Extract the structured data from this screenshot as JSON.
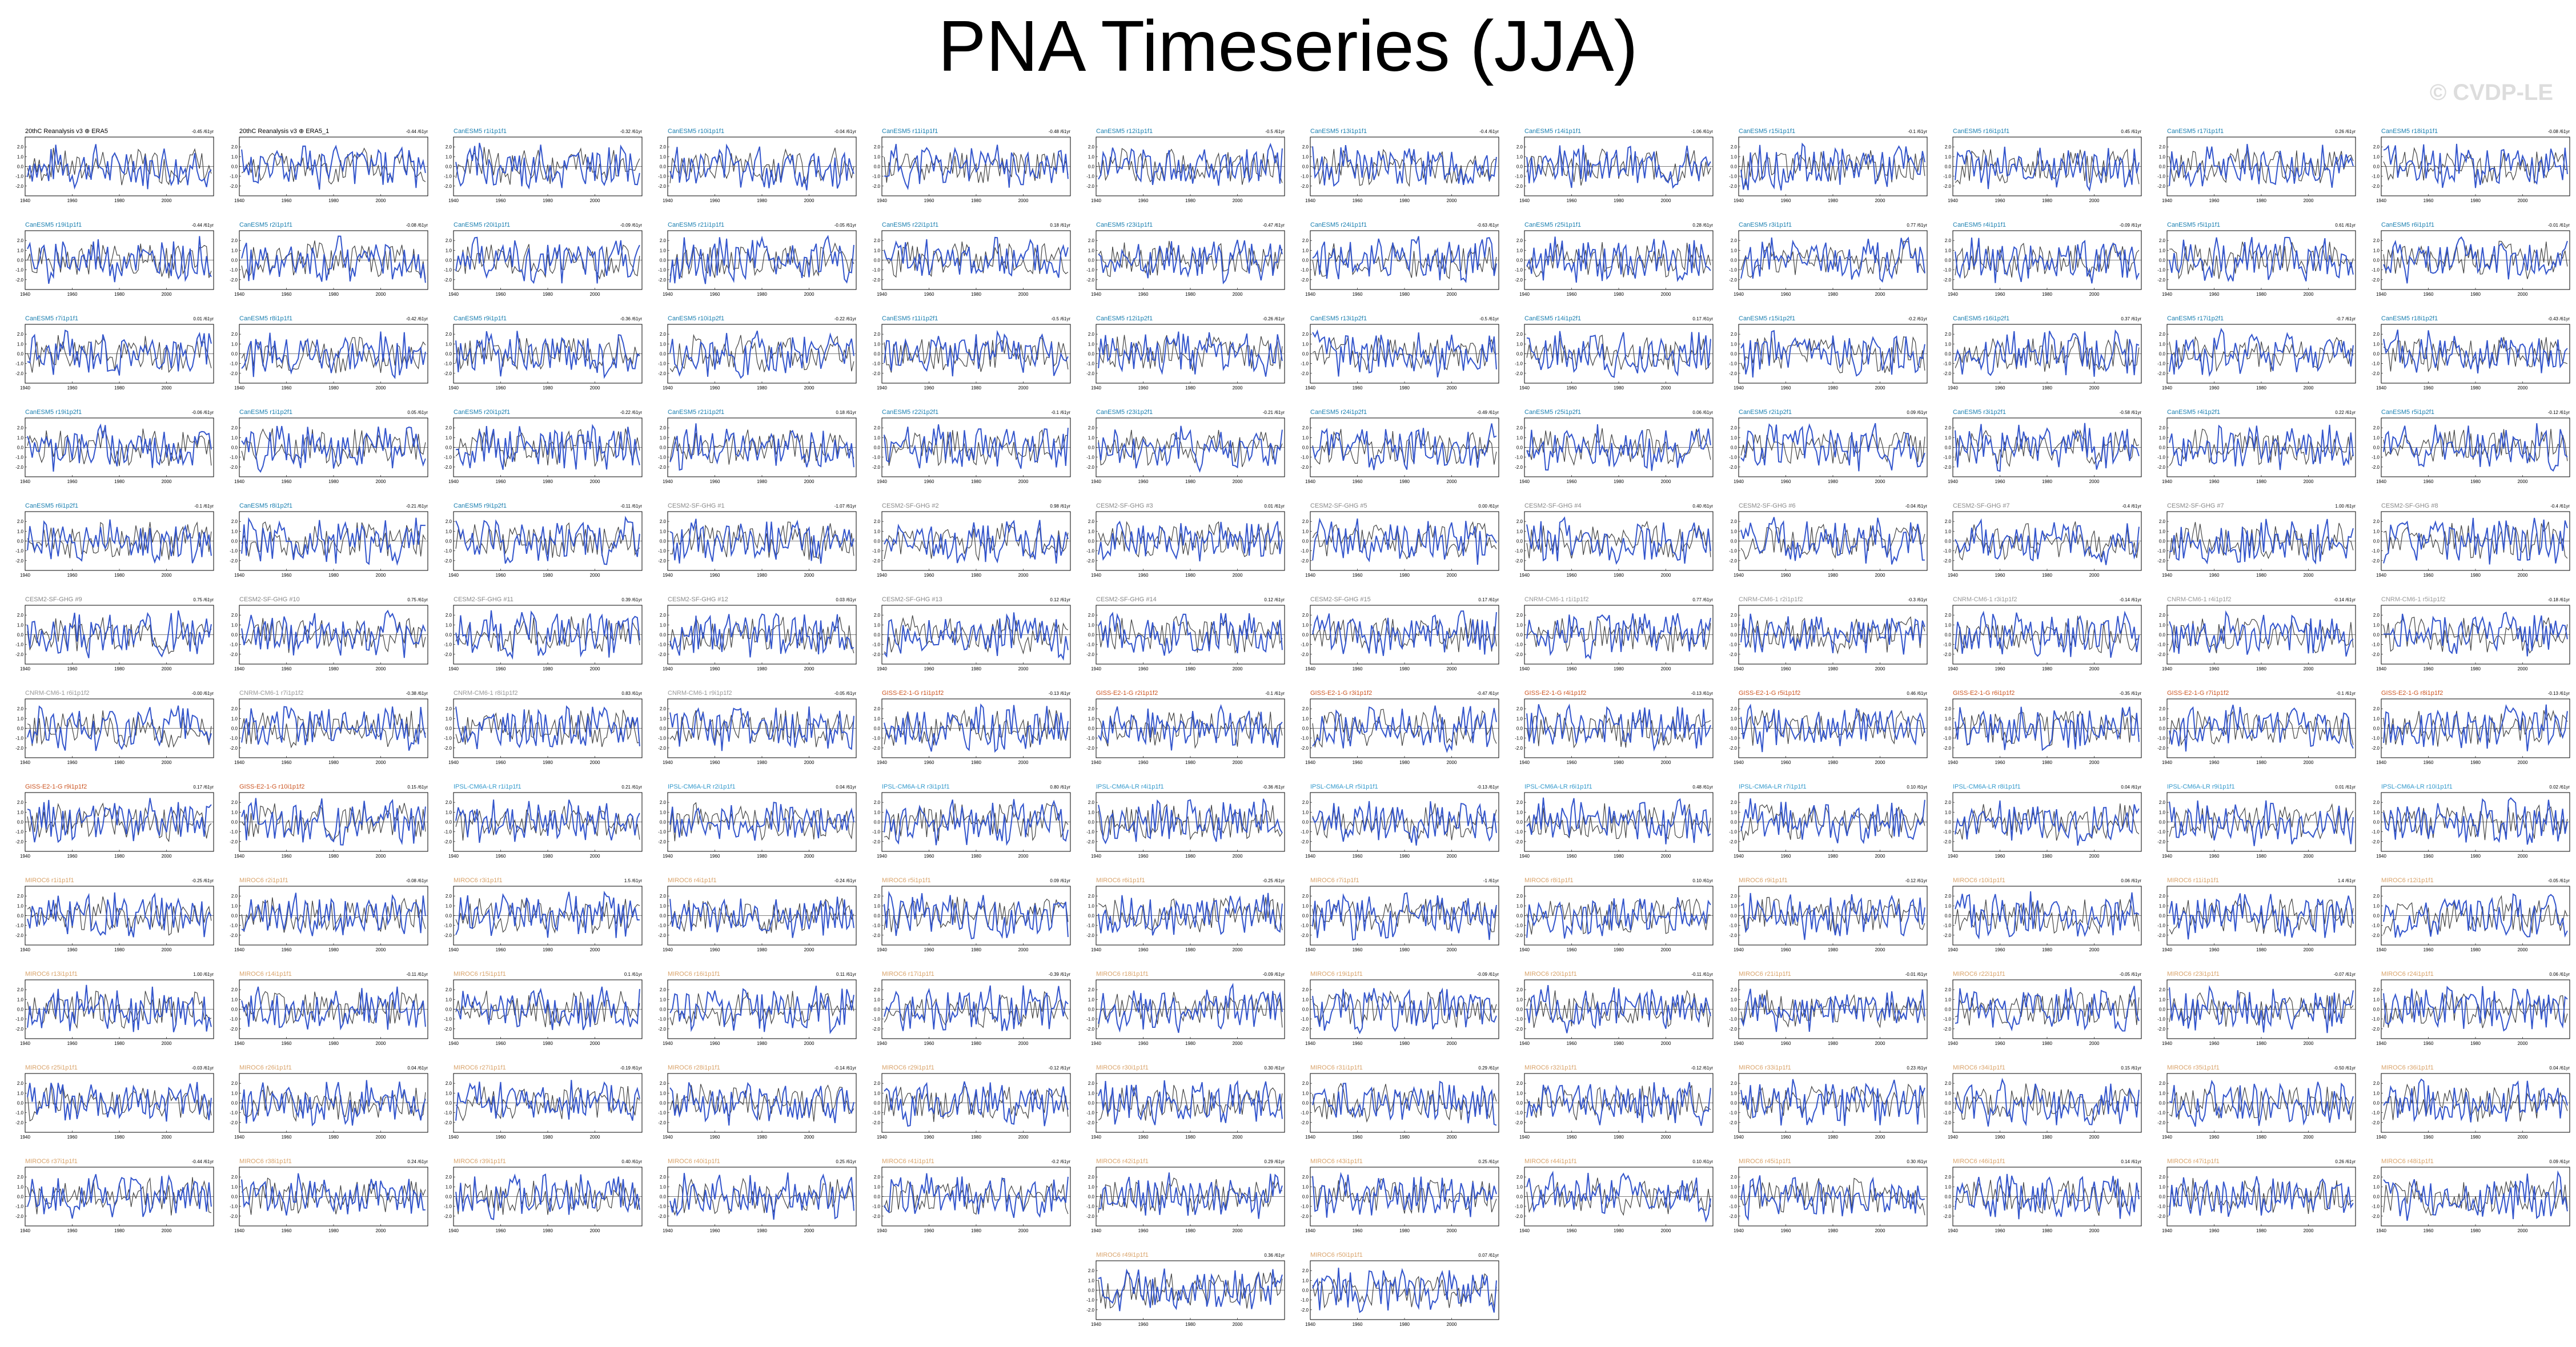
{
  "page": {
    "title": "PNA Timeseries (JJA)",
    "watermark": "© CVDP-LE"
  },
  "colors": {
    "series_line": "#3355cc",
    "observed_line": "#444444",
    "title_obs": "#000000",
    "title_canesm5": "#1a7fb0",
    "title_cesm2": "#888888",
    "title_cnrm": "#999999",
    "title_giss": "#cc5522",
    "title_ipsl": "#3399cc",
    "title_miroc": "#d9a36a"
  },
  "chart_data": {
    "type": "line",
    "x_ticks": [
      1940,
      1960,
      1980,
      2000
    ],
    "y_ticks": [
      2.0,
      1.0,
      0.0,
      -1.0,
      -2.0
    ],
    "xlim": [
      1940,
      2020
    ],
    "ylim": [
      -3,
      3
    ],
    "panels": [
      {
        "title": "20thC Reanalysis v3 ⊕ ERA5",
        "rate": "-0.45 /61yr",
        "group": "obs"
      },
      {
        "title": "20thC Reanalysis v3 ⊕ ERA5_1",
        "rate": "-0.44 /61yr",
        "group": "obs"
      },
      {
        "title": "CanESM5 r1i1p1f1",
        "rate": "-0.32 /61yr",
        "group": "canesm5"
      },
      {
        "title": "CanESM5 r10i1p1f1",
        "rate": "-0.04 /61yr",
        "group": "canesm5"
      },
      {
        "title": "CanESM5 r11i1p1f1",
        "rate": "-0.48 /61yr",
        "group": "canesm5"
      },
      {
        "title": "CanESM5 r12i1p1f1",
        "rate": "-0.5 /61yr",
        "group": "canesm5"
      },
      {
        "title": "CanESM5 r13i1p1f1",
        "rate": "-0.4 /61yr",
        "group": "canesm5"
      },
      {
        "title": "CanESM5 r14i1p1f1",
        "rate": "-1.06 /61yr",
        "group": "canesm5"
      },
      {
        "title": "CanESM5 r15i1p1f1",
        "rate": "-0.1 /61yr",
        "group": "canesm5"
      },
      {
        "title": "CanESM5 r16i1p1f1",
        "rate": "0.45 /61yr",
        "group": "canesm5"
      },
      {
        "title": "CanESM5 r17i1p1f1",
        "rate": "0.26 /61yr",
        "group": "canesm5"
      },
      {
        "title": "CanESM5 r18i1p1f1",
        "rate": "-0.08 /61yr",
        "group": "canesm5"
      },
      {
        "title": "CanESM5 r19i1p1f1",
        "rate": "-0.44 /61yr",
        "group": "canesm5"
      },
      {
        "title": "CanESM5 r2i1p1f1",
        "rate": "-0.08 /61yr",
        "group": "canesm5"
      },
      {
        "title": "CanESM5 r20i1p1f1",
        "rate": "-0.09 /61yr",
        "group": "canesm5"
      },
      {
        "title": "CanESM5 r21i1p1f1",
        "rate": "-0.05 /61yr",
        "group": "canesm5"
      },
      {
        "title": "CanESM5 r22i1p1f1",
        "rate": "0.18 /61yr",
        "group": "canesm5"
      },
      {
        "title": "CanESM5 r23i1p1f1",
        "rate": "-0.47 /61yr",
        "group": "canesm5"
      },
      {
        "title": "CanESM5 r24i1p1f1",
        "rate": "-0.63 /61yr",
        "group": "canesm5"
      },
      {
        "title": "CanESM5 r25i1p1f1",
        "rate": "0.28 /61yr",
        "group": "canesm5"
      },
      {
        "title": "CanESM5 r3i1p1f1",
        "rate": "0.77 /61yr",
        "group": "canesm5"
      },
      {
        "title": "CanESM5 r4i1p1f1",
        "rate": "-0.09 /61yr",
        "group": "canesm5"
      },
      {
        "title": "CanESM5 r5i1p1f1",
        "rate": "0.61 /61yr",
        "group": "canesm5"
      },
      {
        "title": "CanESM5 r6i1p1f1",
        "rate": "-0.01 /61yr",
        "group": "canesm5"
      },
      {
        "title": "CanESM5 r7i1p1f1",
        "rate": "0.01 /61yr",
        "group": "canesm5"
      },
      {
        "title": "CanESM5 r8i1p1f1",
        "rate": "-0.42 /61yr",
        "group": "canesm5"
      },
      {
        "title": "CanESM5 r9i1p1f1",
        "rate": "-0.36 /61yr",
        "group": "canesm5"
      },
      {
        "title": "CanESM5 r10i1p2f1",
        "rate": "-0.22 /61yr",
        "group": "canesm5"
      },
      {
        "title": "CanESM5 r11i1p2f1",
        "rate": "-0.5 /61yr",
        "group": "canesm5"
      },
      {
        "title": "CanESM5 r12i1p2f1",
        "rate": "-0.26 /61yr",
        "group": "canesm5"
      },
      {
        "title": "CanESM5 r13i1p2f1",
        "rate": "-0.5 /61yr",
        "group": "canesm5"
      },
      {
        "title": "CanESM5 r14i1p2f1",
        "rate": "0.17 /61yr",
        "group": "canesm5"
      },
      {
        "title": "CanESM5 r15i1p2f1",
        "rate": "-0.2 /61yr",
        "group": "canesm5"
      },
      {
        "title": "CanESM5 r16i1p2f1",
        "rate": "0.37 /61yr",
        "group": "canesm5"
      },
      {
        "title": "CanESM5 r17i1p2f1",
        "rate": "-0.7 /61yr",
        "group": "canesm5"
      },
      {
        "title": "CanESM5 r18i1p2f1",
        "rate": "-0.43 /61yr",
        "group": "canesm5"
      },
      {
        "title": "CanESM5 r19i1p2f1",
        "rate": "-0.06 /61yr",
        "group": "canesm5"
      },
      {
        "title": "CanESM5 r1i1p2f1",
        "rate": "0.05 /61yr",
        "group": "canesm5"
      },
      {
        "title": "CanESM5 r20i1p2f1",
        "rate": "-0.22 /61yr",
        "group": "canesm5"
      },
      {
        "title": "CanESM5 r21i1p2f1",
        "rate": "0.18 /61yr",
        "group": "canesm5"
      },
      {
        "title": "CanESM5 r22i1p2f1",
        "rate": "-0.1 /61yr",
        "group": "canesm5"
      },
      {
        "title": "CanESM5 r23i1p2f1",
        "rate": "-0.21 /61yr",
        "group": "canesm5"
      },
      {
        "title": "CanESM5 r24i1p2f1",
        "rate": "-0.49 /61yr",
        "group": "canesm5"
      },
      {
        "title": "CanESM5 r25i1p2f1",
        "rate": "0.06 /61yr",
        "group": "canesm5"
      },
      {
        "title": "CanESM5 r2i1p2f1",
        "rate": "0.09 /61yr",
        "group": "canesm5"
      },
      {
        "title": "CanESM5 r3i1p2f1",
        "rate": "-0.58 /61yr",
        "group": "canesm5"
      },
      {
        "title": "CanESM5 r4i1p2f1",
        "rate": "0.22 /61yr",
        "group": "canesm5"
      },
      {
        "title": "CanESM5 r5i1p2f1",
        "rate": "-0.12 /61yr",
        "group": "canesm5"
      },
      {
        "title": "CanESM5 r6i1p2f1",
        "rate": "-0.1 /61yr",
        "group": "canesm5"
      },
      {
        "title": "CanESM5 r8i1p2f1",
        "rate": "-0.21 /61yr",
        "group": "canesm5"
      },
      {
        "title": "CanESM5 r9i1p2f1",
        "rate": "-0.11 /61yr",
        "group": "canesm5"
      },
      {
        "title": "CESM2-SF-GHG #1",
        "rate": "-1.07 /61yr",
        "group": "cesm2"
      },
      {
        "title": "CESM2-SF-GHG #2",
        "rate": "0.98 /61yr",
        "group": "cesm2"
      },
      {
        "title": "CESM2-SF-GHG #3",
        "rate": "0.01 /61yr",
        "group": "cesm2"
      },
      {
        "title": "CESM2-SF-GHG #5",
        "rate": "0.00 /61yr",
        "group": "cesm2"
      },
      {
        "title": "CESM2-SF-GHG #4",
        "rate": "0.40 /61yr",
        "group": "cesm2"
      },
      {
        "title": "CESM2-SF-GHG #6",
        "rate": "-0.04 /61yr",
        "group": "cesm2"
      },
      {
        "title": "CESM2-SF-GHG #7",
        "rate": "-0.4 /61yr",
        "group": "cesm2"
      },
      {
        "title": "CESM2-SF-GHG #7",
        "rate": "1.00 /61yr",
        "group": "cesm2"
      },
      {
        "title": "CESM2-SF-GHG #8",
        "rate": "-0.4 /61yr",
        "group": "cesm2"
      },
      {
        "title": "CESM2-SF-GHG #9",
        "rate": "0.75 /61yr",
        "group": "cesm2"
      },
      {
        "title": "CESM2-SF-GHG #10",
        "rate": "0.75 /61yr",
        "group": "cesm2"
      },
      {
        "title": "CESM2-SF-GHG #11",
        "rate": "0.39 /61yr",
        "group": "cesm2"
      },
      {
        "title": "CESM2-SF-GHG #12",
        "rate": "0.03 /61yr",
        "group": "cesm2"
      },
      {
        "title": "CESM2-SF-GHG #13",
        "rate": "0.12 /61yr",
        "group": "cesm2"
      },
      {
        "title": "CESM2-SF-GHG #14",
        "rate": "0.12 /61yr",
        "group": "cesm2"
      },
      {
        "title": "CESM2-SF-GHG #15",
        "rate": "0.17 /61yr",
        "group": "cesm2"
      },
      {
        "title": "CNRM-CM6-1 r1i1p1f2",
        "rate": "0.77 /61yr",
        "group": "cnrm"
      },
      {
        "title": "CNRM-CM6-1 r2i1p1f2",
        "rate": "-0.3 /61yr",
        "group": "cnrm"
      },
      {
        "title": "CNRM-CM6-1 r3i1p1f2",
        "rate": "-0.14 /61yr",
        "group": "cnrm"
      },
      {
        "title": "CNRM-CM6-1 r4i1p1f2",
        "rate": "-0.14 /61yr",
        "group": "cnrm"
      },
      {
        "title": "CNRM-CM6-1 r5i1p1f2",
        "rate": "-0.18 /61yr",
        "group": "cnrm"
      },
      {
        "title": "CNRM-CM6-1 r6i1p1f2",
        "rate": "-0.00 /61yr",
        "group": "cnrm"
      },
      {
        "title": "CNRM-CM6-1 r7i1p1f2",
        "rate": "-0.38 /61yr",
        "group": "cnrm"
      },
      {
        "title": "CNRM-CM6-1 r8i1p1f2",
        "rate": "0.83 /61yr",
        "group": "cnrm"
      },
      {
        "title": "CNRM-CM6-1 r9i1p1f2",
        "rate": "-0.05 /61yr",
        "group": "cnrm"
      },
      {
        "title": "GISS-E2-1-G r1i1p1f2",
        "rate": "-0.13 /61yr",
        "group": "giss"
      },
      {
        "title": "GISS-E2-1-G r2i1p1f2",
        "rate": "-0.1 /61yr",
        "group": "giss"
      },
      {
        "title": "GISS-E2-1-G r3i1p1f2",
        "rate": "-0.47 /61yr",
        "group": "giss"
      },
      {
        "title": "GISS-E2-1-G r4i1p1f2",
        "rate": "-0.13 /61yr",
        "group": "giss"
      },
      {
        "title": "GISS-E2-1-G r5i1p1f2",
        "rate": "0.46 /61yr",
        "group": "giss"
      },
      {
        "title": "GISS-E2-1-G r6i1p1f2",
        "rate": "-0.35 /61yr",
        "group": "giss"
      },
      {
        "title": "GISS-E2-1-G r7i1p1f2",
        "rate": "-0.1 /61yr",
        "group": "giss"
      },
      {
        "title": "GISS-E2-1-G r8i1p1f2",
        "rate": "-0.13 /61yr",
        "group": "giss"
      },
      {
        "title": "GISS-E2-1-G r9i1p1f2",
        "rate": "0.17 /61yr",
        "group": "giss"
      },
      {
        "title": "GISS-E2-1-G r10i1p1f2",
        "rate": "0.15 /61yr",
        "group": "giss"
      },
      {
        "title": "IPSL-CM6A-LR r1i1p1f1",
        "rate": "0.21 /61yr",
        "group": "ipsl"
      },
      {
        "title": "IPSL-CM6A-LR r2i1p1f1",
        "rate": "0.04 /61yr",
        "group": "ipsl"
      },
      {
        "title": "IPSL-CM6A-LR r3i1p1f1",
        "rate": "0.80 /61yr",
        "group": "ipsl"
      },
      {
        "title": "IPSL-CM6A-LR r4i1p1f1",
        "rate": "-0.36 /61yr",
        "group": "ipsl"
      },
      {
        "title": "IPSL-CM6A-LR r5i1p1f1",
        "rate": "-0.13 /61yr",
        "group": "ipsl"
      },
      {
        "title": "IPSL-CM6A-LR r6i1p1f1",
        "rate": "0.48 /61yr",
        "group": "ipsl"
      },
      {
        "title": "IPSL-CM6A-LR r7i1p1f1",
        "rate": "0.10 /61yr",
        "group": "ipsl"
      },
      {
        "title": "IPSL-CM6A-LR r8i1p1f1",
        "rate": "0.04 /61yr",
        "group": "ipsl"
      },
      {
        "title": "IPSL-CM6A-LR r9i1p1f1",
        "rate": "0.01 /61yr",
        "group": "ipsl"
      },
      {
        "title": "IPSL-CM6A-LR r10i1p1f1",
        "rate": "0.02 /61yr",
        "group": "ipsl"
      },
      {
        "title": "MIROC6 r1i1p1f1",
        "rate": "-0.25 /61yr",
        "group": "miroc"
      },
      {
        "title": "MIROC6 r2i1p1f1",
        "rate": "-0.08 /61yr",
        "group": "miroc"
      },
      {
        "title": "MIROC6 r3i1p1f1",
        "rate": "1.5 /61yr",
        "group": "miroc"
      },
      {
        "title": "MIROC6 r4i1p1f1",
        "rate": "-0.24 /61yr",
        "group": "miroc"
      },
      {
        "title": "MIROC6 r5i1p1f1",
        "rate": "0.09 /61yr",
        "group": "miroc"
      },
      {
        "title": "MIROC6 r6i1p1f1",
        "rate": "-0.25 /61yr",
        "group": "miroc"
      },
      {
        "title": "MIROC6 r7i1p1f1",
        "rate": "-1 /61yr",
        "group": "miroc"
      },
      {
        "title": "MIROC6 r8i1p1f1",
        "rate": "0.10 /61yr",
        "group": "miroc"
      },
      {
        "title": "MIROC6 r9i1p1f1",
        "rate": "-0.12 /61yr",
        "group": "miroc"
      },
      {
        "title": "MIROC6 r10i1p1f1",
        "rate": "0.06 /61yr",
        "group": "miroc"
      },
      {
        "title": "MIROC6 r11i1p1f1",
        "rate": "1.4 /61yr",
        "group": "miroc"
      },
      {
        "title": "MIROC6 r12i1p1f1",
        "rate": "-0.05 /61yr",
        "group": "miroc"
      },
      {
        "title": "MIROC6 r13i1p1f1",
        "rate": "1.00 /61yr",
        "group": "miroc"
      },
      {
        "title": "MIROC6 r14i1p1f1",
        "rate": "-0.11 /61yr",
        "group": "miroc"
      },
      {
        "title": "MIROC6 r15i1p1f1",
        "rate": "0.1 /61yr",
        "group": "miroc"
      },
      {
        "title": "MIROC6 r16i1p1f1",
        "rate": "0.11 /61yr",
        "group": "miroc"
      },
      {
        "title": "MIROC6 r17i1p1f1",
        "rate": "-0.39 /61yr",
        "group": "miroc"
      },
      {
        "title": "MIROC6 r18i1p1f1",
        "rate": "-0.09 /61yr",
        "group": "miroc"
      },
      {
        "title": "MIROC6 r19i1p1f1",
        "rate": "-0.09 /61yr",
        "group": "miroc"
      },
      {
        "title": "MIROC6 r20i1p1f1",
        "rate": "-0.11 /61yr",
        "group": "miroc"
      },
      {
        "title": "MIROC6 r21i1p1f1",
        "rate": "-0.01 /61yr",
        "group": "miroc"
      },
      {
        "title": "MIROC6 r22i1p1f1",
        "rate": "-0.05 /61yr",
        "group": "miroc"
      },
      {
        "title": "MIROC6 r23i1p1f1",
        "rate": "-0.07 /61yr",
        "group": "miroc"
      },
      {
        "title": "MIROC6 r24i1p1f1",
        "rate": "0.06 /61yr",
        "group": "miroc"
      },
      {
        "title": "MIROC6 r25i1p1f1",
        "rate": "-0.03 /61yr",
        "group": "miroc"
      },
      {
        "title": "MIROC6 r26i1p1f1",
        "rate": "0.04 /61yr",
        "group": "miroc"
      },
      {
        "title": "MIROC6 r27i1p1f1",
        "rate": "-0.19 /61yr",
        "group": "miroc"
      },
      {
        "title": "MIROC6 r28i1p1f1",
        "rate": "-0.14 /61yr",
        "group": "miroc"
      },
      {
        "title": "MIROC6 r29i1p1f1",
        "rate": "-0.12 /61yr",
        "group": "miroc"
      },
      {
        "title": "MIROC6 r30i1p1f1",
        "rate": "0.30 /61yr",
        "group": "miroc"
      },
      {
        "title": "MIROC6 r31i1p1f1",
        "rate": "0.29 /61yr",
        "group": "miroc"
      },
      {
        "title": "MIROC6 r32i1p1f1",
        "rate": "-0.12 /61yr",
        "group": "miroc"
      },
      {
        "title": "MIROC6 r33i1p1f1",
        "rate": "0.23 /61yr",
        "group": "miroc"
      },
      {
        "title": "MIROC6 r34i1p1f1",
        "rate": "0.15 /61yr",
        "group": "miroc"
      },
      {
        "title": "MIROC6 r35i1p1f1",
        "rate": "-0.50 /61yr",
        "group": "miroc"
      },
      {
        "title": "MIROC6 r36i1p1f1",
        "rate": "0.04 /61yr",
        "group": "miroc"
      },
      {
        "title": "MIROC6 r37i1p1f1",
        "rate": "-0.44 /61yr",
        "group": "miroc"
      },
      {
        "title": "MIROC6 r38i1p1f1",
        "rate": "0.24 /61yr",
        "group": "miroc"
      },
      {
        "title": "MIROC6 r39i1p1f1",
        "rate": "0.40 /61yr",
        "group": "miroc"
      },
      {
        "title": "MIROC6 r40i1p1f1",
        "rate": "0.25 /61yr",
        "group": "miroc"
      },
      {
        "title": "MIROC6 r41i1p1f1",
        "rate": "-0.2 /61yr",
        "group": "miroc"
      },
      {
        "title": "MIROC6 r42i1p1f1",
        "rate": "0.29 /61yr",
        "group": "miroc"
      },
      {
        "title": "MIROC6 r43i1p1f1",
        "rate": "0.25 /61yr",
        "group": "miroc"
      },
      {
        "title": "MIROC6 r44i1p1f1",
        "rate": "0.10 /61yr",
        "group": "miroc"
      },
      {
        "title": "MIROC6 r45i1p1f1",
        "rate": "0.30 /61yr",
        "group": "miroc"
      },
      {
        "title": "MIROC6 r46i1p1f1",
        "rate": "0.14 /61yr",
        "group": "miroc"
      },
      {
        "title": "MIROC6 r47i1p1f1",
        "rate": "0.26 /61yr",
        "group": "miroc"
      },
      {
        "title": "MIROC6 r48i1p1f1",
        "rate": "0.09 /61yr",
        "group": "miroc"
      },
      {
        "title": "MIROC6 r49i1p1f1",
        "rate": "0.36 /61yr",
        "group": "miroc"
      },
      {
        "title": "MIROC6 r50i1p1f1",
        "rate": "0.07 /61yr",
        "group": "miroc"
      }
    ]
  }
}
